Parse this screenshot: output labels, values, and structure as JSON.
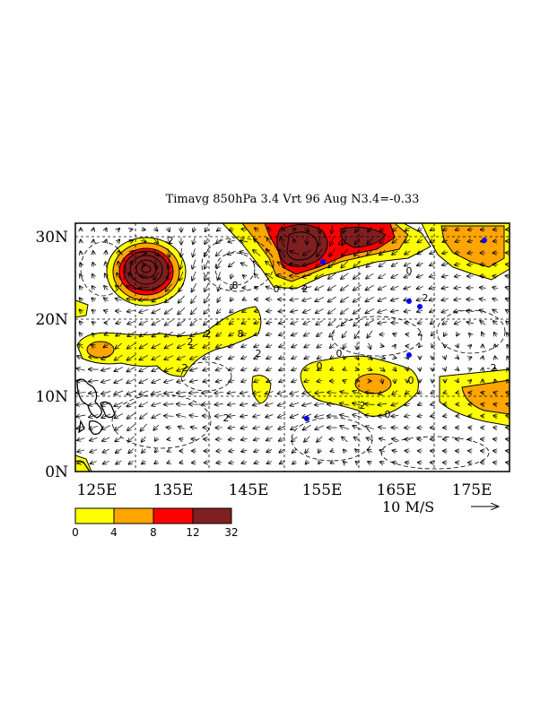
{
  "title": "Timavg 850hPa 3.4 Vrt 96 Aug N3.4=-0.33",
  "lon_labels": [
    "125E",
    "135E",
    "145E",
    "155E",
    "165E",
    "175E"
  ],
  "lat_labels": [
    "30N",
    "20N",
    "10N",
    "0N"
  ],
  "reference_vector": {
    "label": "10 M/S",
    "magnitude": 10
  },
  "colorbar": {
    "ticks": [
      "0",
      "4",
      "8",
      "12",
      "32"
    ],
    "colors": [
      "#ffff00",
      "#ffa500",
      "#ff0000",
      "#7f1f1f"
    ]
  },
  "contour_labels": [
    "2",
    "8",
    "2",
    "2",
    "2",
    "8",
    "0",
    "2",
    "0",
    "2",
    "0",
    "0",
    "2",
    "0",
    "2",
    "0",
    "2",
    "4",
    "-2"
  ],
  "colors": {
    "coast": "#000000",
    "marker": "#0000ff",
    "frame": "#000000"
  }
}
